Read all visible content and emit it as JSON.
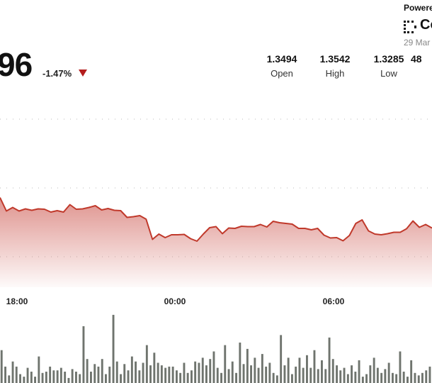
{
  "header": {
    "price_partial": "96",
    "change": "-1.47%",
    "stats": [
      {
        "value": "1.3494",
        "label": "Open"
      },
      {
        "value": "1.3542",
        "label": "High"
      },
      {
        "value": "1.3285",
        "label": "Low"
      },
      {
        "value": "48",
        "label": ""
      }
    ],
    "powered_by": "Powered",
    "brand": "Co",
    "date": "29 Mar"
  },
  "colors": {
    "line": "#c0392b",
    "fill_top": "#d9807a",
    "down_arrow": "#b41e1e",
    "volume": "#6f746e",
    "grid": "#bbbbbb"
  },
  "chart_data": {
    "type": "area",
    "x_ticks": [
      "18:00",
      "00:00",
      "06:00"
    ],
    "grid": true,
    "y_range_price": [
      1.3285,
      1.3542
    ],
    "price_series": [
      1.3548,
      1.351,
      1.352,
      1.351,
      1.3516,
      1.3512,
      1.3516,
      1.3515,
      1.3507,
      1.3511,
      1.3507,
      1.3528,
      1.3515,
      1.3516,
      1.352,
      1.3525,
      1.3513,
      1.3517,
      1.3512,
      1.3511,
      1.3492,
      1.3494,
      1.3497,
      1.3487,
      1.343,
      1.3445,
      1.3435,
      1.3443,
      1.3443,
      1.3444,
      1.3432,
      1.3425,
      1.3445,
      1.3463,
      1.3466,
      1.3446,
      1.3462,
      1.3461,
      1.3467,
      1.3466,
      1.3466,
      1.3472,
      1.3465,
      1.3481,
      1.3477,
      1.3475,
      1.3473,
      1.3461,
      1.3461,
      1.3457,
      1.3461,
      1.3442,
      1.3434,
      1.3435,
      1.3426,
      1.3441,
      1.3475,
      1.3485,
      1.3454,
      1.3445,
      1.3443,
      1.3446,
      1.345,
      1.345,
      1.346,
      1.3482,
      1.3464,
      1.3472,
      1.3462
    ],
    "volume": [
      26,
      13,
      6,
      17,
      13,
      7,
      5,
      12,
      9,
      5,
      21,
      8,
      9,
      13,
      10,
      10,
      12,
      9,
      4,
      11,
      9,
      7,
      45,
      19,
      9,
      15,
      13,
      19,
      7,
      13,
      54,
      17,
      7,
      15,
      10,
      21,
      17,
      10,
      16,
      30,
      14,
      24,
      16,
      14,
      12,
      13,
      13,
      10,
      8,
      16,
      8,
      10,
      17,
      16,
      20,
      14,
      19,
      25,
      12,
      8,
      30,
      11,
      17,
      8,
      32,
      15,
      27,
      14,
      20,
      12,
      23,
      13,
      16,
      8,
      6,
      38,
      14,
      20,
      7,
      13,
      20,
      12,
      22,
      12,
      26,
      11,
      18,
      11,
      36,
      19,
      14,
      10,
      12,
      7,
      14,
      9,
      18,
      5,
      7,
      14,
      20,
      12,
      8,
      11,
      16,
      8,
      7,
      25,
      9,
      5,
      18,
      8,
      6,
      8,
      10,
      13
    ]
  }
}
